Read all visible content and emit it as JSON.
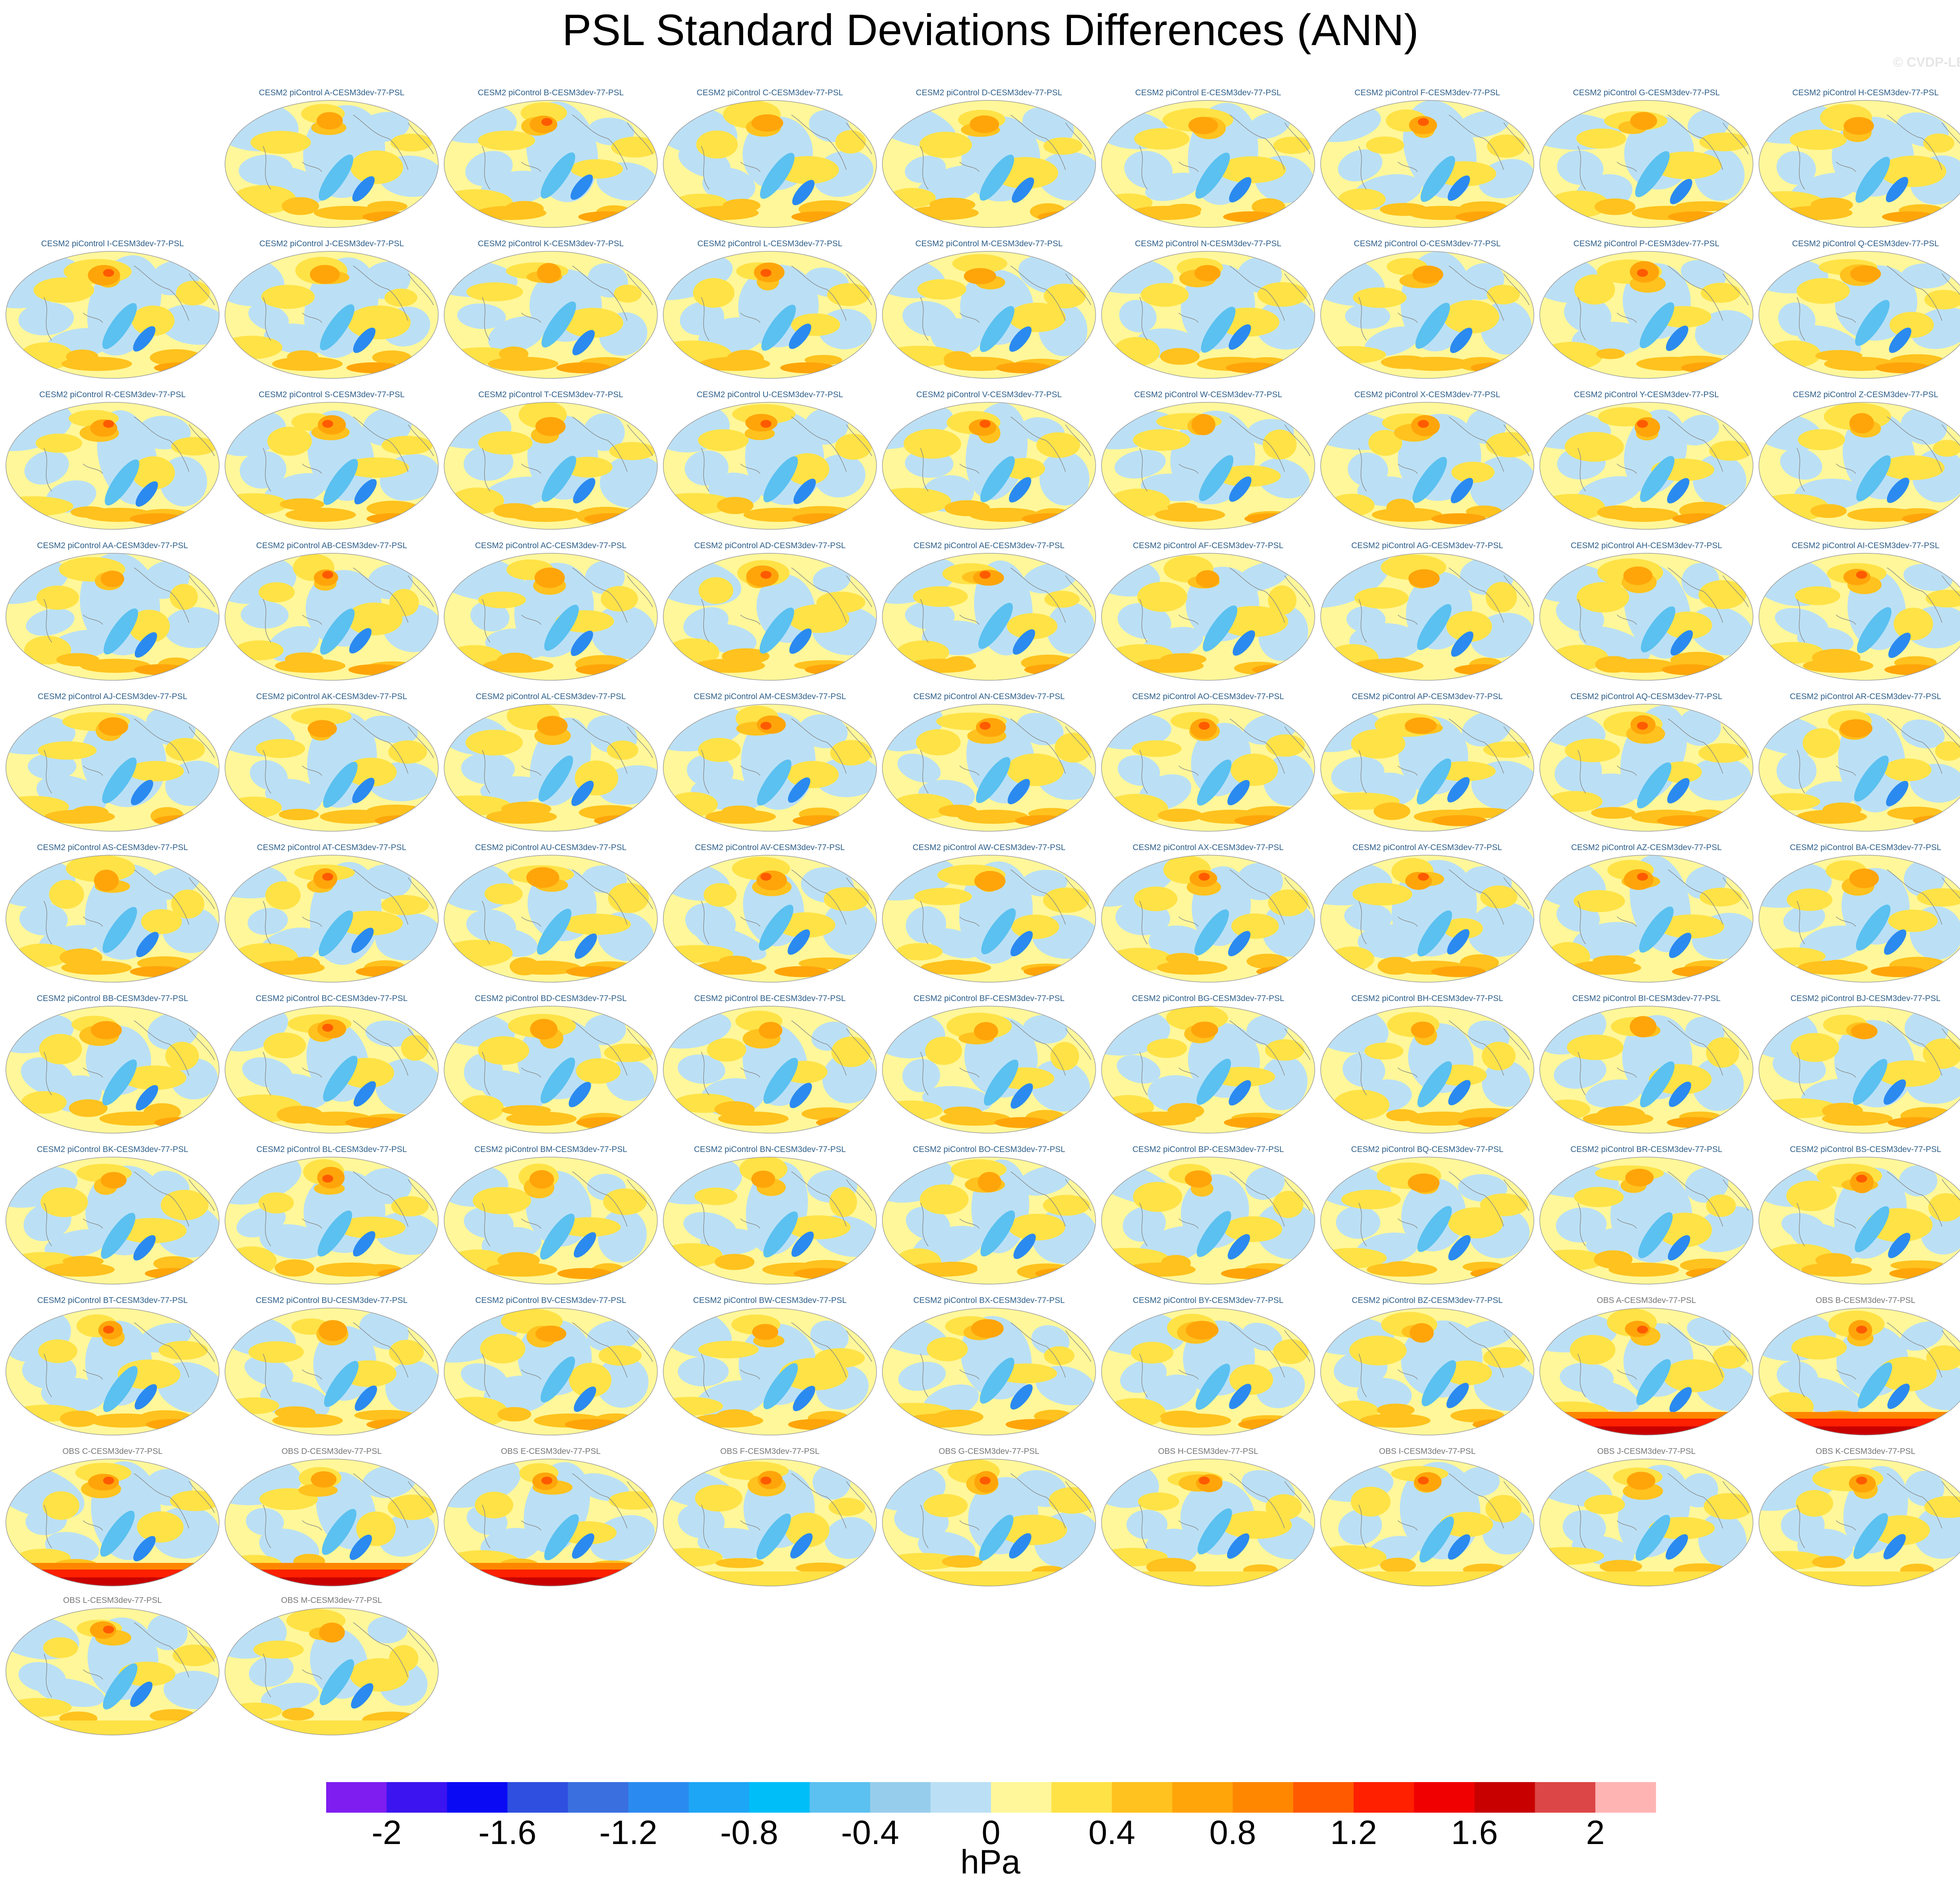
{
  "title": "PSL Standard Deviations Differences (ANN)",
  "credit": "© CVDP-LE",
  "chart_data": {
    "type": "map-panels",
    "title": "PSL Standard Deviations Differences (ANN)",
    "panels": [
      "CESM2 piControl A-CESM3dev-77-PSL",
      "CESM2 piControl B-CESM3dev-77-PSL",
      "CESM2 piControl C-CESM3dev-77-PSL",
      "CESM2 piControl D-CESM3dev-77-PSL",
      "CESM2 piControl E-CESM3dev-77-PSL",
      "CESM2 piControl F-CESM3dev-77-PSL",
      "CESM2 piControl G-CESM3dev-77-PSL",
      "CESM2 piControl H-CESM3dev-77-PSL",
      "CESM2 piControl I-CESM3dev-77-PSL",
      "CESM2 piControl J-CESM3dev-77-PSL",
      "CESM2 piControl K-CESM3dev-77-PSL",
      "CESM2 piControl L-CESM3dev-77-PSL",
      "CESM2 piControl M-CESM3dev-77-PSL",
      "CESM2 piControl N-CESM3dev-77-PSL",
      "CESM2 piControl O-CESM3dev-77-PSL",
      "CESM2 piControl P-CESM3dev-77-PSL",
      "CESM2 piControl Q-CESM3dev-77-PSL",
      "CESM2 piControl R-CESM3dev-77-PSL",
      "CESM2 piControl S-CESM3dev-77-PSL",
      "CESM2 piControl T-CESM3dev-77-PSL",
      "CESM2 piControl U-CESM3dev-77-PSL",
      "CESM2 piControl V-CESM3dev-77-PSL",
      "CESM2 piControl W-CESM3dev-77-PSL",
      "CESM2 piControl X-CESM3dev-77-PSL",
      "CESM2 piControl Y-CESM3dev-77-PSL",
      "CESM2 piControl Z-CESM3dev-77-PSL",
      "CESM2 piControl AA-CESM3dev-77-PSL",
      "CESM2 piControl AB-CESM3dev-77-PSL",
      "CESM2 piControl AC-CESM3dev-77-PSL",
      "CESM2 piControl AD-CESM3dev-77-PSL",
      "CESM2 piControl AE-CESM3dev-77-PSL",
      "CESM2 piControl AF-CESM3dev-77-PSL",
      "CESM2 piControl AG-CESM3dev-77-PSL",
      "CESM2 piControl AH-CESM3dev-77-PSL",
      "CESM2 piControl AI-CESM3dev-77-PSL",
      "CESM2 piControl AJ-CESM3dev-77-PSL",
      "CESM2 piControl AK-CESM3dev-77-PSL",
      "CESM2 piControl AL-CESM3dev-77-PSL",
      "CESM2 piControl AM-CESM3dev-77-PSL",
      "CESM2 piControl AN-CESM3dev-77-PSL",
      "CESM2 piControl AO-CESM3dev-77-PSL",
      "CESM2 piControl AP-CESM3dev-77-PSL",
      "CESM2 piControl AQ-CESM3dev-77-PSL",
      "CESM2 piControl AR-CESM3dev-77-PSL",
      "CESM2 piControl AS-CESM3dev-77-PSL",
      "CESM2 piControl AT-CESM3dev-77-PSL",
      "CESM2 piControl AU-CESM3dev-77-PSL",
      "CESM2 piControl AV-CESM3dev-77-PSL",
      "CESM2 piControl AW-CESM3dev-77-PSL",
      "CESM2 piControl AX-CESM3dev-77-PSL",
      "CESM2 piControl AY-CESM3dev-77-PSL",
      "CESM2 piControl AZ-CESM3dev-77-PSL",
      "CESM2 piControl BA-CESM3dev-77-PSL",
      "CESM2 piControl BB-CESM3dev-77-PSL",
      "CESM2 piControl BC-CESM3dev-77-PSL",
      "CESM2 piControl BD-CESM3dev-77-PSL",
      "CESM2 piControl BE-CESM3dev-77-PSL",
      "CESM2 piControl BF-CESM3dev-77-PSL",
      "CESM2 piControl BG-CESM3dev-77-PSL",
      "CESM2 piControl BH-CESM3dev-77-PSL",
      "CESM2 piControl BI-CESM3dev-77-PSL",
      "CESM2 piControl BJ-CESM3dev-77-PSL",
      "CESM2 piControl BK-CESM3dev-77-PSL",
      "CESM2 piControl BL-CESM3dev-77-PSL",
      "CESM2 piControl BM-CESM3dev-77-PSL",
      "CESM2 piControl BN-CESM3dev-77-PSL",
      "CESM2 piControl BO-CESM3dev-77-PSL",
      "CESM2 piControl BP-CESM3dev-77-PSL",
      "CESM2 piControl BQ-CESM3dev-77-PSL",
      "CESM2 piControl BR-CESM3dev-77-PSL",
      "CESM2 piControl BS-CESM3dev-77-PSL",
      "CESM2 piControl BT-CESM3dev-77-PSL",
      "CESM2 piControl BU-CESM3dev-77-PSL",
      "CESM2 piControl BV-CESM3dev-77-PSL",
      "CESM2 piControl BW-CESM3dev-77-PSL",
      "CESM2 piControl BX-CESM3dev-77-PSL",
      "CESM2 piControl BY-CESM3dev-77-PSL",
      "CESM2 piControl BZ-CESM3dev-77-PSL",
      "OBS A-CESM3dev-77-PSL",
      "OBS B-CESM3dev-77-PSL",
      "OBS C-CESM3dev-77-PSL",
      "OBS D-CESM3dev-77-PSL",
      "OBS E-CESM3dev-77-PSL",
      "OBS F-CESM3dev-77-PSL",
      "OBS G-CESM3dev-77-PSL",
      "OBS H-CESM3dev-77-PSL",
      "OBS I-CESM3dev-77-PSL",
      "OBS J-CESM3dev-77-PSL",
      "OBS K-CESM3dev-77-PSL",
      "OBS L-CESM3dev-77-PSL",
      "OBS M-CESM3dev-77-PSL"
    ],
    "colorbar": {
      "units": "hPa",
      "levels": [
        -2.2,
        -2,
        -1.8,
        -1.6,
        -1.4,
        -1.2,
        -1,
        -0.8,
        -0.6,
        -0.4,
        -0.2,
        0,
        0.2,
        0.4,
        0.6,
        0.8,
        1,
        1.2,
        1.4,
        1.6,
        1.8,
        2,
        2.2
      ],
      "colors": [
        "#7f1df0",
        "#3c14f0",
        "#0a0af5",
        "#2f4fe0",
        "#3a6fe0",
        "#2b8af0",
        "#1ea6f6",
        "#00bef8",
        "#5bc1f0",
        "#96cdec",
        "#bbe0f5",
        "#fff79a",
        "#ffe246",
        "#ffc21e",
        "#ffa50a",
        "#ff8700",
        "#ff5a00",
        "#ff2000",
        "#f00000",
        "#c80000",
        "#dc4646",
        "#ffb4b4"
      ],
      "tick_labels": [
        "-2",
        "-1.6",
        "-1.2",
        "-0.8",
        "-0.4",
        "0",
        "0.4",
        "0.8",
        "1.2",
        "1.6",
        "2"
      ]
    }
  }
}
